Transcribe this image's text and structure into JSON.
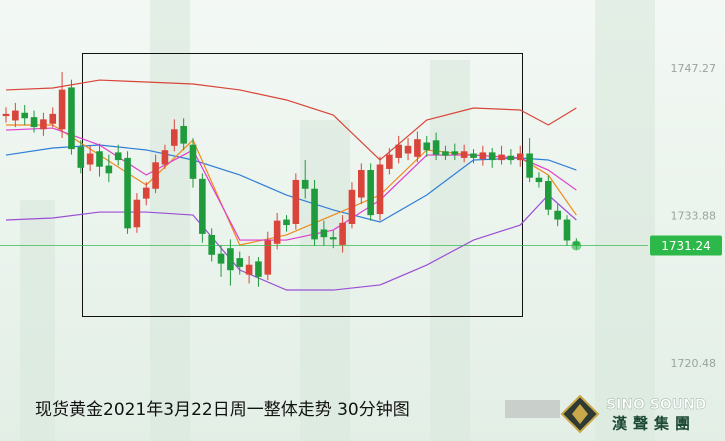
{
  "chart_data": {
    "type": "candlestick",
    "caption": "现货黄金2021年3月22日周一整体走势  30分钟图",
    "brand": "SINO SOUND",
    "brand_cn": "漢聲集團",
    "ylim": [
      1713.49,
      1753.54
    ],
    "yticks": [
      1747.27,
      1733.88,
      1720.48
    ],
    "last_price": 1731.24,
    "last_price_color": "#2db84a",
    "up_color": "#d9453a",
    "down_color": "#1f9a3c",
    "open": [
      1743.0,
      1742.6,
      1743.3,
      1742.9,
      1741.8,
      1742.3,
      1741.8,
      1745.6,
      1740.2,
      1738.6,
      1739.8,
      1738.5,
      1739.7,
      1739.2,
      1732.9,
      1735.5,
      1736.4,
      1738.6,
      1740.3,
      1742.1,
      1740.4,
      1737.3,
      1732.2,
      1730.5,
      1731.0,
      1730.1,
      1728.6,
      1729.8,
      1728.6,
      1731.4,
      1733.6,
      1733.2,
      1737.2,
      1736.4,
      1732.7,
      1732.0,
      1731.3,
      1733.2,
      1735.6,
      1738.1,
      1734.1,
      1738.2,
      1739.2,
      1739.6,
      1739.3,
      1740.6,
      1740.8,
      1739.8,
      1739.8,
      1739.2,
      1739.6,
      1739.1,
      1739.7,
      1739.0,
      1739.4,
      1739.0,
      1739.6,
      1737.4,
      1737.1,
      1734.4,
      1733.6,
      1731.6
    ],
    "high": [
      1743.8,
      1744.2,
      1744.0,
      1743.5,
      1743.3,
      1743.8,
      1747.0,
      1746.3,
      1740.8,
      1740.3,
      1740.5,
      1739.5,
      1740.4,
      1739.8,
      1736.0,
      1737.0,
      1739.5,
      1740.4,
      1742.7,
      1742.8,
      1741.0,
      1737.8,
      1732.8,
      1731.3,
      1731.8,
      1730.7,
      1730.3,
      1730.2,
      1732.5,
      1734.2,
      1734.0,
      1737.8,
      1739.0,
      1737.2,
      1733.5,
      1732.6,
      1734.0,
      1737.0,
      1738.7,
      1738.7,
      1739.3,
      1740.1,
      1741.2,
      1741.0,
      1741.6,
      1741.2,
      1741.5,
      1740.3,
      1740.5,
      1740.4,
      1740.0,
      1740.3,
      1740.1,
      1740.3,
      1740.0,
      1740.3,
      1741.0,
      1737.9,
      1737.6,
      1735.0,
      1734.0,
      1731.9
    ],
    "low": [
      1742.4,
      1742.0,
      1742.2,
      1741.5,
      1741.2,
      1742.0,
      1741.0,
      1739.5,
      1737.8,
      1738.0,
      1737.5,
      1737.0,
      1738.5,
      1732.3,
      1732.4,
      1734.9,
      1736.0,
      1738.2,
      1739.8,
      1739.9,
      1736.5,
      1731.5,
      1729.8,
      1728.4,
      1727.6,
      1728.6,
      1727.8,
      1727.5,
      1728.1,
      1730.9,
      1732.5,
      1732.7,
      1735.5,
      1731.2,
      1731.2,
      1731.0,
      1730.6,
      1732.8,
      1735.0,
      1733.5,
      1733.5,
      1737.7,
      1738.7,
      1739.0,
      1738.8,
      1739.3,
      1739.0,
      1739.0,
      1739.0,
      1738.8,
      1738.7,
      1738.5,
      1738.3,
      1738.6,
      1738.6,
      1738.4,
      1737.0,
      1736.5,
      1734.0,
      1733.0,
      1731.2,
      1730.9
    ],
    "close": [
      1743.2,
      1743.5,
      1742.8,
      1742.0,
      1742.7,
      1743.2,
      1745.4,
      1740.0,
      1738.3,
      1739.6,
      1738.4,
      1737.8,
      1739.0,
      1732.8,
      1735.4,
      1736.5,
      1738.8,
      1739.9,
      1741.8,
      1740.5,
      1737.3,
      1732.3,
      1730.4,
      1729.6,
      1729.0,
      1729.3,
      1729.5,
      1728.4,
      1731.7,
      1733.5,
      1733.1,
      1737.2,
      1736.4,
      1731.8,
      1732.0,
      1731.8,
      1733.3,
      1736.3,
      1738.1,
      1734.0,
      1738.6,
      1739.5,
      1740.4,
      1740.3,
      1740.9,
      1739.9,
      1739.5,
      1739.4,
      1739.5,
      1739.8,
      1739.2,
      1739.7,
      1739.0,
      1739.5,
      1739.0,
      1739.6,
      1737.4,
      1737.0,
      1734.5,
      1733.6,
      1731.7,
      1731.24
    ],
    "series": [
      {
        "color": "#d9453a",
        "x": [
          0,
          5,
          10,
          15,
          20,
          25,
          30,
          35,
          40,
          45,
          50,
          55,
          58,
          61
        ],
        "values": [
          1745.37,
          1745.55,
          1746.27,
          1746.09,
          1745.91,
          1745.37,
          1744.46,
          1743.09,
          1739.01,
          1742.64,
          1743.73,
          1743.55,
          1742.19,
          1743.73
        ]
      },
      {
        "color": "#2f7fd8",
        "x": [
          0,
          5,
          10,
          15,
          20,
          25,
          30,
          35,
          40,
          45,
          50,
          55,
          58,
          61
        ],
        "values": [
          1739.46,
          1740.1,
          1740.37,
          1739.92,
          1739.01,
          1737.65,
          1735.83,
          1734.47,
          1733.38,
          1735.83,
          1739.01,
          1739.19,
          1739.01,
          1738.1
        ]
      },
      {
        "color": "#9b4fd6",
        "x": [
          0,
          5,
          10,
          15,
          20,
          25,
          30,
          35,
          40,
          45,
          50,
          55,
          58,
          61
        ],
        "values": [
          1733.56,
          1733.74,
          1734.28,
          1734.28,
          1734.01,
          1729.02,
          1727.2,
          1727.2,
          1727.66,
          1729.47,
          1731.74,
          1733.1,
          1735.83,
          1733.56
        ]
      },
      {
        "color": "#f08a1c",
        "x": [
          0,
          5,
          10,
          15,
          20,
          25,
          30,
          35,
          40,
          45,
          50,
          55,
          58,
          61
        ],
        "values": [
          1742.19,
          1742.19,
          1739.46,
          1736.74,
          1740.82,
          1731.29,
          1732.2,
          1734.01,
          1735.83,
          1739.92,
          1739.46,
          1739.19,
          1737.65,
          1734.01
        ]
      },
      {
        "color": "#e03ccf",
        "x": [
          0,
          5,
          10,
          15,
          20,
          25,
          30,
          35,
          40,
          45,
          50,
          55,
          58,
          61
        ],
        "values": [
          1741.73,
          1741.91,
          1740.37,
          1737.65,
          1739.92,
          1731.74,
          1731.74,
          1732.65,
          1735.37,
          1739.46,
          1739.46,
          1739.19,
          1738.1,
          1736.28
        ]
      }
    ]
  }
}
